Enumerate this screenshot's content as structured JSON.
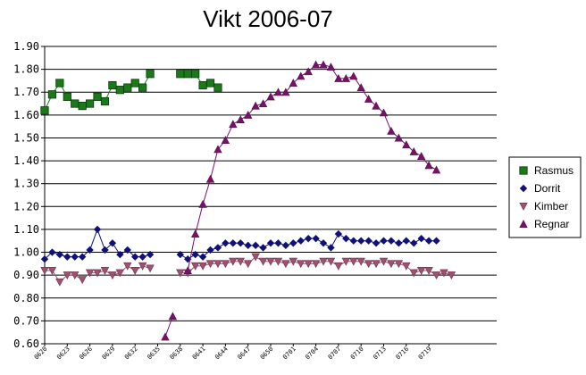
{
  "chart_data": {
    "type": "line",
    "title": "Vikt 2006-07",
    "xlabel": "",
    "ylabel": "",
    "ylim": [
      0.6,
      1.9
    ],
    "yticks": [
      "0.60",
      "0.70",
      "0.80",
      "0.90",
      "1.00",
      "1.10",
      "1.20",
      "1.30",
      "1.40",
      "1.50",
      "1.60",
      "1.70",
      "1.80",
      "1.90"
    ],
    "grid": true,
    "legend_position": "right",
    "x_count": 61,
    "x_tick_labels": [
      "0620",
      "0623",
      "0626",
      "0629",
      "0632",
      "0635",
      "0638",
      "0641",
      "0644",
      "0647",
      "0650",
      "0701",
      "0704",
      "0707",
      "0710",
      "0713",
      "0716",
      "0719"
    ],
    "series": [
      {
        "name": "Rasmus",
        "color": "#1a7a1a",
        "marker": "square",
        "values": [
          1.62,
          1.69,
          1.74,
          1.68,
          1.65,
          1.64,
          1.65,
          1.68,
          1.66,
          1.73,
          1.71,
          1.72,
          1.74,
          1.72,
          1.78,
          null,
          null,
          null,
          1.78,
          1.78,
          1.78,
          1.73,
          1.74,
          1.72,
          null,
          null,
          null,
          null,
          null,
          null,
          null,
          null,
          null,
          null,
          null,
          null,
          null,
          null,
          null,
          null,
          null,
          null,
          null,
          null,
          null,
          null,
          null,
          null,
          null,
          null,
          null,
          null,
          null,
          null,
          null,
          null,
          null,
          null,
          null,
          null,
          null
        ]
      },
      {
        "name": "Dorrit",
        "color": "#10107a",
        "marker": "diamond",
        "values": [
          0.97,
          1.0,
          0.99,
          0.98,
          0.98,
          0.98,
          1.01,
          1.1,
          1.01,
          1.04,
          0.99,
          1.01,
          0.98,
          0.98,
          0.99,
          null,
          null,
          null,
          0.99,
          0.97,
          0.99,
          0.98,
          1.01,
          1.02,
          1.04,
          1.04,
          1.04,
          1.03,
          1.03,
          1.02,
          1.04,
          1.04,
          1.03,
          1.04,
          1.05,
          1.06,
          1.06,
          1.04,
          1.02,
          1.08,
          1.06,
          1.05,
          1.05,
          1.05,
          1.04,
          1.05,
          1.05,
          1.04,
          1.05,
          1.04,
          1.06,
          1.05,
          1.05,
          null,
          null,
          null,
          null,
          null,
          null,
          null,
          null
        ]
      },
      {
        "name": "Kimber",
        "color": "#a05070",
        "marker": "triangle-down",
        "values": [
          0.92,
          0.92,
          0.87,
          0.9,
          0.9,
          0.88,
          0.91,
          0.91,
          0.92,
          0.9,
          0.91,
          0.94,
          0.92,
          0.94,
          0.93,
          null,
          null,
          null,
          0.91,
          0.91,
          0.94,
          0.94,
          0.95,
          0.95,
          0.95,
          0.96,
          0.96,
          0.95,
          0.98,
          0.96,
          0.96,
          0.96,
          0.95,
          0.96,
          0.95,
          0.95,
          0.95,
          0.96,
          0.96,
          0.94,
          0.96,
          0.96,
          0.96,
          0.95,
          0.95,
          0.96,
          0.95,
          0.95,
          0.94,
          0.91,
          0.92,
          0.92,
          0.9,
          0.91,
          0.9,
          null,
          null,
          null,
          null,
          null,
          null
        ]
      },
      {
        "name": "Regnar",
        "color": "#7a106a",
        "marker": "triangle-up",
        "values": [
          null,
          null,
          null,
          null,
          null,
          null,
          null,
          null,
          null,
          null,
          null,
          null,
          null,
          null,
          null,
          null,
          0.63,
          0.72,
          null,
          0.92,
          1.08,
          1.21,
          1.32,
          1.45,
          1.49,
          1.56,
          1.58,
          1.6,
          1.64,
          1.65,
          1.68,
          1.7,
          1.7,
          1.74,
          1.77,
          1.79,
          1.82,
          1.82,
          1.81,
          1.76,
          1.76,
          1.77,
          1.72,
          1.67,
          1.64,
          1.61,
          1.53,
          1.5,
          1.47,
          1.44,
          1.42,
          1.38,
          1.36,
          null,
          null,
          null,
          null,
          null,
          null,
          null,
          null
        ]
      }
    ]
  }
}
